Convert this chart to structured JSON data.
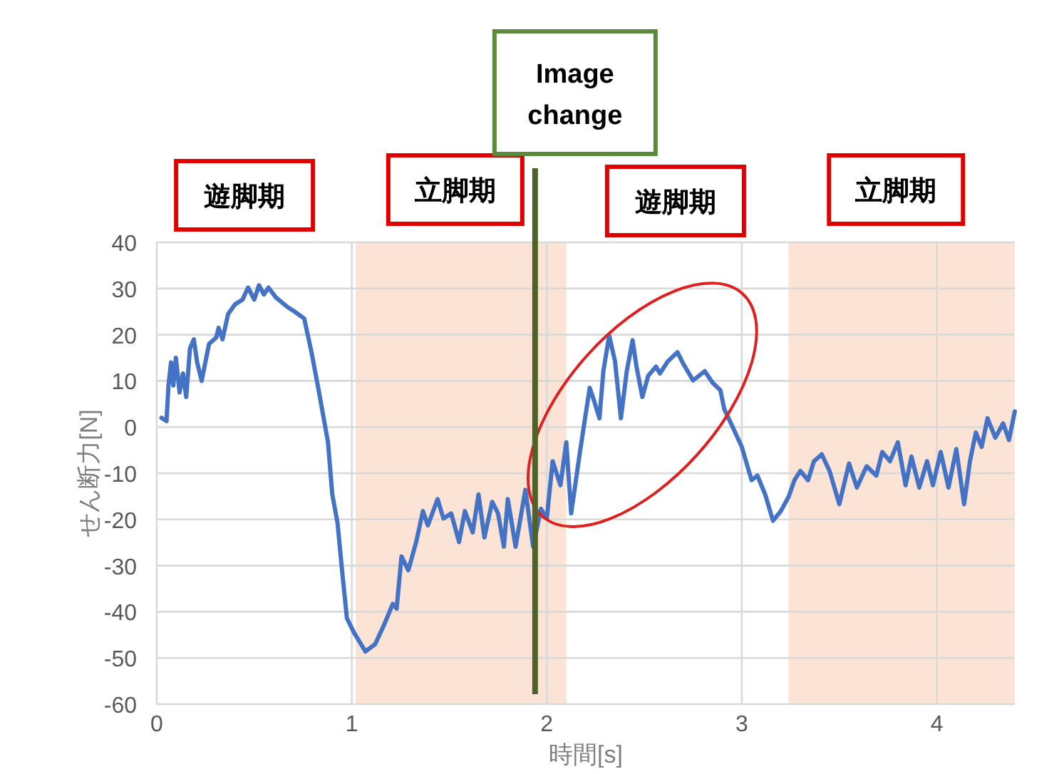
{
  "chart_data": {
    "type": "line",
    "xlabel": "時間[s]",
    "ylabel": "せん断力[N]",
    "xlim": [
      0,
      4.4
    ],
    "ylim": [
      -60,
      40
    ],
    "xticks": [
      0,
      1,
      2,
      3,
      4
    ],
    "yticks": [
      -60,
      -50,
      -40,
      -30,
      -20,
      -10,
      0,
      10,
      20,
      30,
      40
    ],
    "grid": true,
    "marker": "none",
    "line_style": "solid",
    "series": [
      {
        "color": "#4472c4",
        "x": [
          0.024,
          0.05,
          0.06,
          0.073,
          0.085,
          0.098,
          0.117,
          0.134,
          0.151,
          0.17,
          0.19,
          0.207,
          0.23,
          0.268,
          0.305,
          0.317,
          0.337,
          0.366,
          0.402,
          0.44,
          0.468,
          0.5,
          0.524,
          0.549,
          0.573,
          0.61,
          0.67,
          0.707,
          0.756,
          0.793,
          0.83,
          0.878,
          0.9,
          0.927,
          0.95,
          0.975,
          1.01,
          1.07,
          1.12,
          1.17,
          1.21,
          1.23,
          1.255,
          1.29,
          1.33,
          1.365,
          1.39,
          1.44,
          1.47,
          1.51,
          1.55,
          1.58,
          1.62,
          1.65,
          1.68,
          1.72,
          1.75,
          1.78,
          1.8,
          1.84,
          1.89,
          1.93,
          1.97,
          2.0,
          2.03,
          2.07,
          2.1,
          2.125,
          2.17,
          2.22,
          2.24,
          2.27,
          2.29,
          2.32,
          2.35,
          2.38,
          2.41,
          2.44,
          2.46,
          2.49,
          2.52,
          2.56,
          2.58,
          2.62,
          2.67,
          2.7,
          2.75,
          2.81,
          2.85,
          2.89,
          2.91,
          2.95,
          3.0,
          3.05,
          3.08,
          3.12,
          3.16,
          3.2,
          3.24,
          3.27,
          3.3,
          3.34,
          3.37,
          3.41,
          3.45,
          3.5,
          3.55,
          3.59,
          3.64,
          3.69,
          3.72,
          3.76,
          3.8,
          3.84,
          3.87,
          3.91,
          3.95,
          3.98,
          4.02,
          4.06,
          4.1,
          4.14,
          4.17,
          4.2,
          4.23,
          4.26,
          4.3,
          4.34,
          4.37,
          4.4
        ],
        "values": [
          2,
          1.3,
          9,
          14,
          9,
          15,
          7.5,
          11.6,
          6.5,
          17,
          19,
          14,
          10,
          18,
          19.4,
          21.5,
          19,
          24.5,
          26.6,
          27.6,
          30.2,
          27.6,
          30.7,
          28.7,
          30.2,
          28.1,
          26,
          25,
          23.5,
          16.3,
          8,
          -3.3,
          -14.6,
          -20.8,
          -31,
          -41.4,
          -44.4,
          -48.6,
          -47,
          -42.4,
          -38.3,
          -39.3,
          -28,
          -31,
          -24.9,
          -18.2,
          -21.3,
          -15.6,
          -19.8,
          -18.7,
          -24.9,
          -18.2,
          -22.8,
          -14.6,
          -23.9,
          -16.2,
          -18.7,
          -25.9,
          -15.6,
          -25.9,
          -13.6,
          -25.9,
          -17.7,
          -19.8,
          -7.4,
          -12.6,
          -3.3,
          -18.7,
          -5.4,
          8.5,
          6,
          1.9,
          12.1,
          19.8,
          14.2,
          1.9,
          12.1,
          18.8,
          13.1,
          6.5,
          11.1,
          13.1,
          11.6,
          14.2,
          16.2,
          13.7,
          10.1,
          12.1,
          9.6,
          8,
          3.9,
          0.3,
          -4.3,
          -11.5,
          -10.5,
          -14.6,
          -20.3,
          -18.2,
          -15.1,
          -11.5,
          -9.5,
          -11.5,
          -7.4,
          -5.9,
          -9.5,
          -16.7,
          -7.9,
          -13.1,
          -8.5,
          -10.5,
          -5.4,
          -7.4,
          -3.3,
          -12.6,
          -6.4,
          -13.1,
          -7.4,
          -12.6,
          -5.4,
          -13.1,
          -4.8,
          -16.7,
          -7.4,
          -1.2,
          -4.3,
          1.9,
          -2.3,
          0.8,
          -2.8,
          3.4
        ]
      }
    ],
    "bands": [
      {
        "axis": "x",
        "from": 1.02,
        "to": 2.1,
        "label": "立脚期",
        "color": "#fbe3d5"
      },
      {
        "axis": "x",
        "from": 3.24,
        "to": 4.4,
        "label": "立脚期",
        "color": "#fbe3d5"
      }
    ],
    "ref_lines": [
      {
        "axis": "x",
        "value": 1.94,
        "label": "Image change",
        "color": "#4f6228"
      }
    ],
    "annotations": [
      "遊脚期",
      "遊脚期"
    ]
  }
}
